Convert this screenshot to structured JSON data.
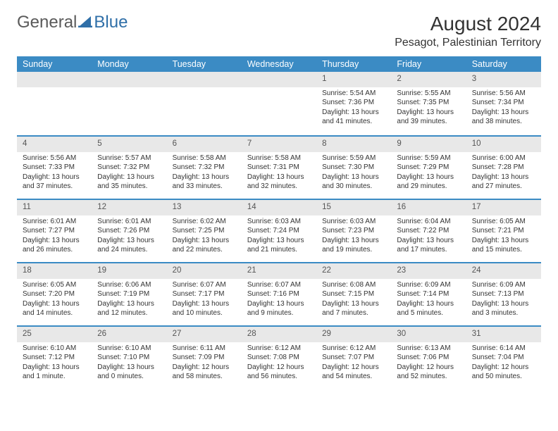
{
  "logo": {
    "part1": "General",
    "part2": "Blue"
  },
  "title": "August 2024",
  "location": "Pesagot, Palestinian Territory",
  "styling": {
    "header_bg": "#3b8bc4",
    "header_text": "#ffffff",
    "daynum_bg": "#e8e8e8",
    "row_divider": "#3b8bc4",
    "body_text": "#333333",
    "page_bg": "#ffffff",
    "month_fontsize": 28,
    "header_fontsize": 12.5,
    "cell_fontsize": 10
  },
  "columns": [
    "Sunday",
    "Monday",
    "Tuesday",
    "Wednesday",
    "Thursday",
    "Friday",
    "Saturday"
  ],
  "weeks": [
    [
      null,
      null,
      null,
      null,
      {
        "n": "1",
        "sr": "5:54 AM",
        "ss": "7:36 PM",
        "dl": "13 hours and 41 minutes."
      },
      {
        "n": "2",
        "sr": "5:55 AM",
        "ss": "7:35 PM",
        "dl": "13 hours and 39 minutes."
      },
      {
        "n": "3",
        "sr": "5:56 AM",
        "ss": "7:34 PM",
        "dl": "13 hours and 38 minutes."
      }
    ],
    [
      {
        "n": "4",
        "sr": "5:56 AM",
        "ss": "7:33 PM",
        "dl": "13 hours and 37 minutes."
      },
      {
        "n": "5",
        "sr": "5:57 AM",
        "ss": "7:32 PM",
        "dl": "13 hours and 35 minutes."
      },
      {
        "n": "6",
        "sr": "5:58 AM",
        "ss": "7:32 PM",
        "dl": "13 hours and 33 minutes."
      },
      {
        "n": "7",
        "sr": "5:58 AM",
        "ss": "7:31 PM",
        "dl": "13 hours and 32 minutes."
      },
      {
        "n": "8",
        "sr": "5:59 AM",
        "ss": "7:30 PM",
        "dl": "13 hours and 30 minutes."
      },
      {
        "n": "9",
        "sr": "5:59 AM",
        "ss": "7:29 PM",
        "dl": "13 hours and 29 minutes."
      },
      {
        "n": "10",
        "sr": "6:00 AM",
        "ss": "7:28 PM",
        "dl": "13 hours and 27 minutes."
      }
    ],
    [
      {
        "n": "11",
        "sr": "6:01 AM",
        "ss": "7:27 PM",
        "dl": "13 hours and 26 minutes."
      },
      {
        "n": "12",
        "sr": "6:01 AM",
        "ss": "7:26 PM",
        "dl": "13 hours and 24 minutes."
      },
      {
        "n": "13",
        "sr": "6:02 AM",
        "ss": "7:25 PM",
        "dl": "13 hours and 22 minutes."
      },
      {
        "n": "14",
        "sr": "6:03 AM",
        "ss": "7:24 PM",
        "dl": "13 hours and 21 minutes."
      },
      {
        "n": "15",
        "sr": "6:03 AM",
        "ss": "7:23 PM",
        "dl": "13 hours and 19 minutes."
      },
      {
        "n": "16",
        "sr": "6:04 AM",
        "ss": "7:22 PM",
        "dl": "13 hours and 17 minutes."
      },
      {
        "n": "17",
        "sr": "6:05 AM",
        "ss": "7:21 PM",
        "dl": "13 hours and 15 minutes."
      }
    ],
    [
      {
        "n": "18",
        "sr": "6:05 AM",
        "ss": "7:20 PM",
        "dl": "13 hours and 14 minutes."
      },
      {
        "n": "19",
        "sr": "6:06 AM",
        "ss": "7:19 PM",
        "dl": "13 hours and 12 minutes."
      },
      {
        "n": "20",
        "sr": "6:07 AM",
        "ss": "7:17 PM",
        "dl": "13 hours and 10 minutes."
      },
      {
        "n": "21",
        "sr": "6:07 AM",
        "ss": "7:16 PM",
        "dl": "13 hours and 9 minutes."
      },
      {
        "n": "22",
        "sr": "6:08 AM",
        "ss": "7:15 PM",
        "dl": "13 hours and 7 minutes."
      },
      {
        "n": "23",
        "sr": "6:09 AM",
        "ss": "7:14 PM",
        "dl": "13 hours and 5 minutes."
      },
      {
        "n": "24",
        "sr": "6:09 AM",
        "ss": "7:13 PM",
        "dl": "13 hours and 3 minutes."
      }
    ],
    [
      {
        "n": "25",
        "sr": "6:10 AM",
        "ss": "7:12 PM",
        "dl": "13 hours and 1 minute."
      },
      {
        "n": "26",
        "sr": "6:10 AM",
        "ss": "7:10 PM",
        "dl": "13 hours and 0 minutes."
      },
      {
        "n": "27",
        "sr": "6:11 AM",
        "ss": "7:09 PM",
        "dl": "12 hours and 58 minutes."
      },
      {
        "n": "28",
        "sr": "6:12 AM",
        "ss": "7:08 PM",
        "dl": "12 hours and 56 minutes."
      },
      {
        "n": "29",
        "sr": "6:12 AM",
        "ss": "7:07 PM",
        "dl": "12 hours and 54 minutes."
      },
      {
        "n": "30",
        "sr": "6:13 AM",
        "ss": "7:06 PM",
        "dl": "12 hours and 52 minutes."
      },
      {
        "n": "31",
        "sr": "6:14 AM",
        "ss": "7:04 PM",
        "dl": "12 hours and 50 minutes."
      }
    ]
  ],
  "labels": {
    "sunrise": "Sunrise:",
    "sunset": "Sunset:",
    "daylight": "Daylight:"
  }
}
